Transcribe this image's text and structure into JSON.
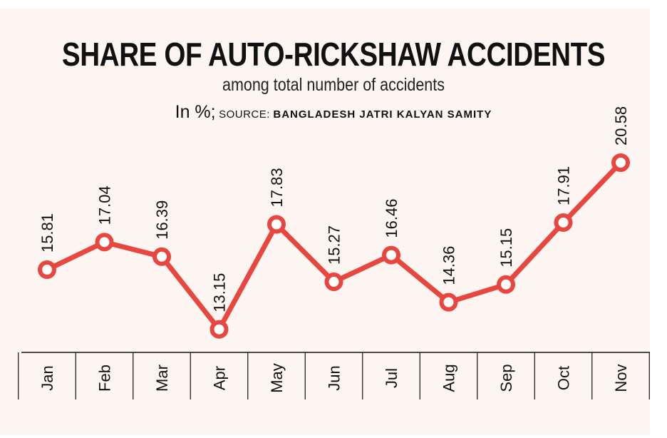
{
  "chart_data": {
    "type": "line",
    "title": "SHARE OF AUTO-RICKSHAW ACCIDENTS",
    "subtitle": "among total number of accidents",
    "unit_label": "In %;",
    "source_label": "SOURCE:",
    "source_name": "BANGLADESH JATRI KALYAN SAMITY",
    "categories": [
      "Jan",
      "Feb",
      "Mar",
      "Apr",
      "May",
      "Jun",
      "Jul",
      "Aug",
      "Sep",
      "Oct",
      "Nov"
    ],
    "values": [
      15.81,
      17.04,
      16.39,
      13.15,
      17.83,
      15.27,
      16.46,
      14.36,
      15.15,
      17.91,
      20.58
    ],
    "value_labels": [
      "15.81",
      "17.04",
      "16.39",
      "13.15",
      "17.83",
      "15.27",
      "16.46",
      "14.36",
      "15.15",
      "17.91",
      "20.58"
    ],
    "ylim": [
      12.95,
      20.58
    ],
    "grid": false,
    "colors": {
      "line": "#e8473f",
      "marker_fill": "#ffffff",
      "background": "#fcf5f2",
      "text": "#111111"
    }
  }
}
